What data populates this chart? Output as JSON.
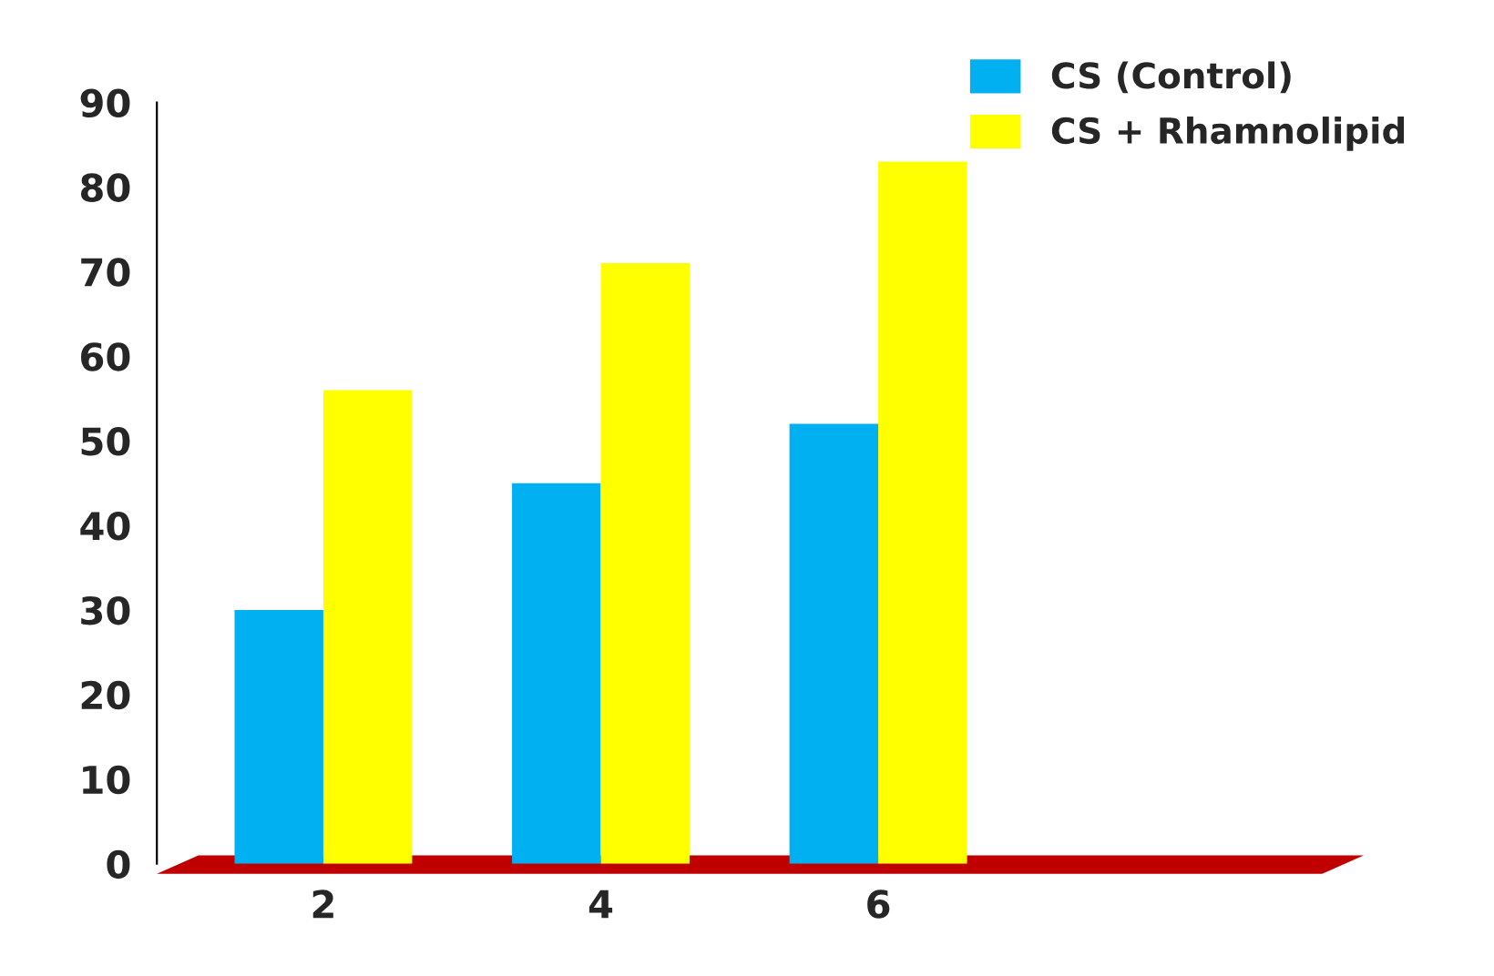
{
  "chart_data": {
    "type": "bar",
    "categories": [
      "2",
      "4",
      "6",
      null
    ],
    "series": [
      {
        "name": "CS (Control)",
        "color": "#00b0f0",
        "values": [
          30,
          45,
          52,
          null
        ]
      },
      {
        "name": "CS + Rhamnolipid",
        "color": "#ffff00",
        "values": [
          56,
          71,
          83,
          null
        ]
      }
    ],
    "ylim": [
      0,
      90
    ],
    "yticks": [
      0,
      10,
      20,
      30,
      40,
      50,
      60,
      70,
      80,
      90
    ],
    "grid": false,
    "legend": "top right"
  }
}
